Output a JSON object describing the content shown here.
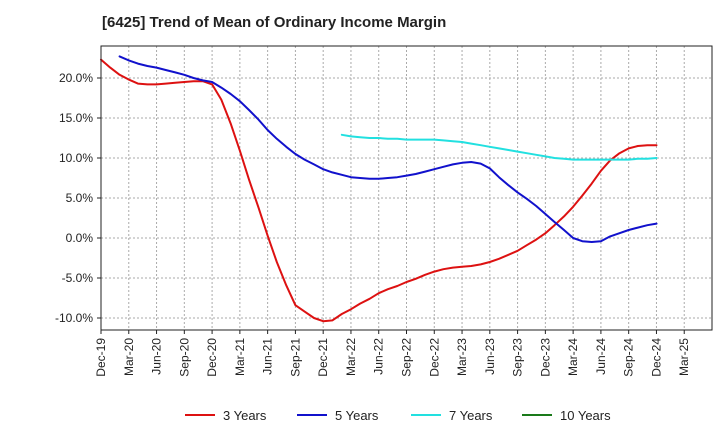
{
  "chart_data": {
    "type": "line",
    "title": "[6425]  Trend of Mean of Ordinary Income Margin",
    "xlabel": "",
    "ylabel": "",
    "x_ticks": [
      "Dec-19",
      "Mar-20",
      "Jun-20",
      "Sep-20",
      "Dec-20",
      "Mar-21",
      "Jun-21",
      "Sep-21",
      "Dec-21",
      "Mar-22",
      "Jun-22",
      "Sep-22",
      "Dec-22",
      "Mar-23",
      "Jun-23",
      "Sep-23",
      "Dec-23",
      "Mar-24",
      "Jun-24",
      "Sep-24",
      "Dec-24",
      "Mar-25"
    ],
    "y_ticks": [
      "20.0%",
      "15.0%",
      "10.0%",
      "5.0%",
      "0.0%",
      "-5.0%",
      "-10.0%"
    ],
    "y_tick_values": [
      20,
      15,
      10,
      5,
      0,
      -5,
      -10
    ],
    "ylim": [
      -11.5,
      24
    ],
    "grid": true,
    "legend_position": "bottom",
    "series": [
      {
        "name": "3 Years",
        "color": "#dd1111",
        "x": [
          0,
          0.33,
          0.67,
          1,
          1.33,
          1.67,
          2,
          2.33,
          2.67,
          3,
          3.33,
          3.67,
          4,
          4.33,
          4.67,
          5,
          5.33,
          5.67,
          6,
          6.33,
          6.67,
          7,
          7.33,
          7.67,
          8,
          8.33,
          8.67,
          9,
          9.33,
          9.67,
          10,
          10.33,
          10.67,
          11,
          11.33,
          11.67,
          12,
          12.33,
          12.67,
          13,
          13.33,
          13.67,
          14,
          14.33,
          14.67,
          15,
          15.33,
          15.67,
          16,
          16.33,
          16.67,
          17,
          17.33,
          17.67,
          18,
          18.33,
          18.67,
          19,
          19.33,
          19.67,
          20
        ],
        "values": [
          22.3,
          21.3,
          20.4,
          19.8,
          19.3,
          19.2,
          19.2,
          19.3,
          19.4,
          19.5,
          19.6,
          19.6,
          19.2,
          17.3,
          14.3,
          10.9,
          7.3,
          3.8,
          0.3,
          -3.0,
          -5.9,
          -8.4,
          -9.2,
          -10.0,
          -10.4,
          -10.3,
          -9.5,
          -8.9,
          -8.2,
          -7.6,
          -6.9,
          -6.4,
          -6.0,
          -5.5,
          -5.1,
          -4.6,
          -4.2,
          -3.9,
          -3.7,
          -3.6,
          -3.5,
          -3.3,
          -3.0,
          -2.6,
          -2.1,
          -1.6,
          -0.9,
          -0.2,
          0.6,
          1.6,
          2.7,
          3.9,
          5.3,
          6.8,
          8.4,
          9.7,
          10.6,
          11.2,
          11.5,
          11.6,
          11.6
        ]
      },
      {
        "name": "5 Years",
        "color": "#1111cc",
        "x": [
          0.67,
          1,
          1.33,
          1.67,
          2,
          2.33,
          2.67,
          3,
          3.33,
          3.67,
          4,
          4.33,
          4.67,
          5,
          5.33,
          5.67,
          6,
          6.33,
          6.67,
          7,
          7.33,
          7.67,
          8,
          8.33,
          8.67,
          9,
          9.33,
          9.67,
          10,
          10.33,
          10.67,
          11,
          11.33,
          11.67,
          12,
          12.33,
          12.67,
          13,
          13.33,
          13.67,
          14,
          14.33,
          14.67,
          15,
          15.33,
          15.67,
          16,
          16.33,
          16.67,
          17,
          17.33,
          17.67,
          18,
          18.33,
          18.67,
          19,
          19.33,
          19.67,
          20
        ],
        "values": [
          22.7,
          22.2,
          21.8,
          21.5,
          21.3,
          21.0,
          20.7,
          20.4,
          20.0,
          19.7,
          19.5,
          18.8,
          18.0,
          17.1,
          16.0,
          14.8,
          13.5,
          12.4,
          11.4,
          10.5,
          9.8,
          9.2,
          8.6,
          8.2,
          7.9,
          7.6,
          7.5,
          7.4,
          7.4,
          7.5,
          7.6,
          7.8,
          8.0,
          8.3,
          8.6,
          8.9,
          9.2,
          9.4,
          9.5,
          9.3,
          8.7,
          7.6,
          6.6,
          5.7,
          4.9,
          4.0,
          3.0,
          2.0,
          1.0,
          0.0,
          -0.4,
          -0.5,
          -0.4,
          0.2,
          0.6,
          1.0,
          1.3,
          1.6,
          1.8
        ]
      },
      {
        "name": "7 Years",
        "color": "#22e0e0",
        "x": [
          8.67,
          9,
          9.33,
          9.67,
          10,
          10.33,
          10.67,
          11,
          11.33,
          11.67,
          12,
          12.33,
          12.67,
          13,
          13.33,
          13.67,
          14,
          14.33,
          14.67,
          15,
          15.33,
          15.67,
          16,
          16.33,
          16.67,
          17,
          17.33,
          17.67,
          18,
          18.33,
          18.67,
          19,
          19.33,
          19.67,
          20
        ],
        "values": [
          12.9,
          12.7,
          12.6,
          12.5,
          12.5,
          12.4,
          12.4,
          12.3,
          12.3,
          12.3,
          12.3,
          12.2,
          12.1,
          12.0,
          11.8,
          11.6,
          11.4,
          11.2,
          11.0,
          10.8,
          10.6,
          10.4,
          10.2,
          10.0,
          9.9,
          9.8,
          9.8,
          9.8,
          9.8,
          9.8,
          9.8,
          9.8,
          9.9,
          9.9,
          10.0
        ]
      },
      {
        "name": "10 Years",
        "color": "#1a7a1a",
        "x": [],
        "values": []
      }
    ]
  }
}
